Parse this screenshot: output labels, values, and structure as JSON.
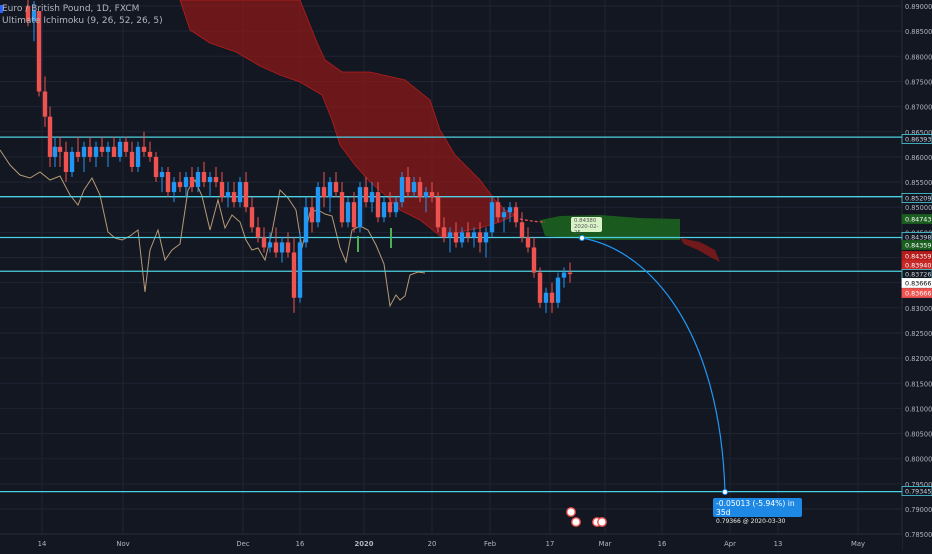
{
  "header": {
    "symbol_line": "Euro / British Pound, 1D, FXCM",
    "indicator_line": "Ultimate Ichimoku (9, 26, 52, 26, 5)"
  },
  "price_axis": {
    "labels": [
      "0.89000",
      "0.88500",
      "0.88000",
      "0.87500",
      "0.87000",
      "0.86500",
      "0.86000",
      "0.85500",
      "0.85000",
      "0.84500",
      "0.84000",
      "0.83500",
      "0.83000",
      "0.82500",
      "0.82000",
      "0.81500",
      "0.81000",
      "0.80500",
      "0.80000",
      "0.79500",
      "0.79000",
      "0.78500"
    ]
  },
  "time_axis": {
    "labels": [
      "14",
      "Nov",
      "Dec",
      "16",
      "2020",
      "20",
      "Feb",
      "17",
      "Mar",
      "16",
      "Apr",
      "13",
      "May"
    ]
  },
  "price_tags": [
    {
      "text": "0.86393",
      "bg": "#131722",
      "fg": "#d1d4dc",
      "border": "#4dd0e1"
    },
    {
      "text": "0.85209",
      "bg": "#131722",
      "fg": "#d1d4dc",
      "border": "#4dd0e1"
    },
    {
      "text": "0.84743",
      "bg": "#1b5e20",
      "fg": "#ffffff",
      "border": "#1b5e20"
    },
    {
      "text": "0.84398",
      "bg": "#131722",
      "fg": "#d1d4dc",
      "border": "#4dd0e1"
    },
    {
      "text": "0.84359",
      "bg": "#1b5e20",
      "fg": "#ffffff",
      "border": "#1b5e20"
    },
    {
      "text": "0.84359",
      "bg": "#b71c1c",
      "fg": "#ffffff",
      "border": "#b71c1c"
    },
    {
      "text": "0.83940",
      "bg": "#c62828",
      "fg": "#ffffff",
      "border": "#c62828"
    },
    {
      "text": "0.83726",
      "bg": "#131722",
      "fg": "#d1d4dc",
      "border": "#4dd0e1"
    },
    {
      "text": "0.83666",
      "bg": "#ffffff",
      "fg": "#000000",
      "border": "#ffffff"
    },
    {
      "text": "0.83666",
      "bg": "#ef5350",
      "fg": "#ffffff",
      "border": "#ef5350"
    },
    {
      "text": "0.79345",
      "bg": "#131722",
      "fg": "#d1d4dc",
      "border": "#4dd0e1"
    }
  ],
  "horizontal_levels": [
    0.86393,
    0.85209,
    0.84398,
    0.83726,
    0.79345
  ],
  "measurement": {
    "line1": "-0.05013 (-5.94%) in 35d",
    "line2": "0.79366 @ 2020-03-30"
  },
  "tooltip": {
    "value": "0.84380",
    "date": "2020-02-25"
  },
  "colors": {
    "background": "#131722",
    "bull": "#2196f3",
    "bear": "#ef5350",
    "level_line": "#4dd0e1",
    "cloud_bear": "#8b1a1a",
    "cloud_bull": "#1b5e20",
    "lagging_span": "#c8a97e",
    "projection": "#2196f3"
  }
}
